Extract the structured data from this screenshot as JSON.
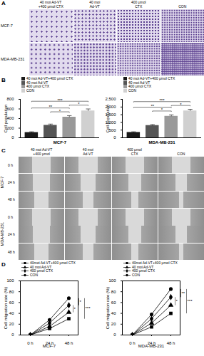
{
  "panel_letters": [
    "A",
    "B",
    "C",
    "D"
  ],
  "image_panels": [
    {
      "column_labels": [
        [
          "40 moi Ad-VT",
          "+400 μmol CTX"
        ],
        [
          "40 moi",
          "Ad-VT"
        ],
        [
          "400 μmol",
          "CTX"
        ],
        [
          "CON"
        ]
      ],
      "rows": [
        "MCF-7",
        "MDA-MB-231"
      ]
    },
    {
      "column_labels": [
        [
          "40 moi Ad-VT",
          "+400 μmol"
        ],
        [
          "40 moi",
          "Ad-VT"
        ],
        [
          "400 μmol",
          "CTX"
        ],
        [
          "CON"
        ]
      ],
      "row_groups": [
        {
          "label": "MCF-7",
          "times": [
            "0 h",
            "24 h",
            "48 h"
          ]
        },
        {
          "label": "MDA-MB-231",
          "times": [
            "0 h",
            "24 h",
            "48 h"
          ]
        }
      ]
    }
  ],
  "chart_data": [
    {
      "type": "bar",
      "title": "MCF-7",
      "ylabel": "Cell population",
      "categories": [
        "40 moi Ad-VT+400 μmol CTX",
        "40 moi Ad-VT",
        "400 μmol CTX",
        "CON"
      ],
      "values": [
        110,
        260,
        430,
        560
      ],
      "errors": [
        15,
        25,
        30,
        40
      ],
      "colors": [
        "#1a1a1a",
        "#555555",
        "#999999",
        "#d0d0d0"
      ],
      "ylim": [
        0,
        800
      ],
      "yticks": [
        0,
        200,
        400,
        600,
        800
      ],
      "tick_labels": "y",
      "legend": "top",
      "annotations": [
        {
          "between": [
            "40 moi Ad-VT",
            "400 μmol CTX"
          ],
          "label": "*"
        },
        {
          "between": [
            "400 μmol CTX",
            "CON"
          ],
          "label": "*"
        },
        {
          "between": [
            "40 moi Ad-VT+400 μmol CTX",
            "400 μmol CTX"
          ],
          "label": "**"
        },
        {
          "between": [
            "40 moi Ad-VT+400 μmol CTX",
            "CON"
          ],
          "label": "***"
        }
      ]
    },
    {
      "type": "bar",
      "title": "MDA-MB-231",
      "ylabel": "Cell population",
      "categories": [
        "40 moi Ad-VT+400 μmol CTX",
        "40 moi Ad-VT",
        "400 μmol CTX",
        "CON"
      ],
      "values": [
        350,
        800,
        1400,
        1750
      ],
      "errors": [
        40,
        60,
        90,
        100
      ],
      "colors": [
        "#1a1a1a",
        "#555555",
        "#999999",
        "#d0d0d0"
      ],
      "ylim": [
        0,
        2500
      ],
      "yticks": [
        0,
        500,
        1000,
        1500,
        2000,
        2500
      ],
      "tick_labels": "y",
      "legend": "top",
      "annotations": [
        {
          "between": [
            "40 moi Ad-VT",
            "400 μmol CTX"
          ],
          "label": "*"
        },
        {
          "between": [
            "400 μmol CTX",
            "CON"
          ],
          "label": "*"
        },
        {
          "between": [
            "40 moi Ad-VT+400 μmol CTX",
            "400 μmol CTX"
          ],
          "label": "**"
        },
        {
          "between": [
            "40 moi Ad-VT+400 μmol CTX",
            "CON"
          ],
          "label": "***"
        }
      ]
    },
    {
      "type": "line",
      "title": "MCF-7",
      "ylabel": "Cell migration rate (%)",
      "categories": [
        "0 h",
        "24 h",
        "48 h"
      ],
      "series": [
        {
          "name": "40moi Ad-VT+400 μmol CTX",
          "color": "#000000",
          "marker": "square",
          "values": [
            0,
            12,
            30
          ]
        },
        {
          "name": "40 moi Ad-VT",
          "color": "#000000",
          "marker": "triangle",
          "values": [
            0,
            16,
            42
          ]
        },
        {
          "name": "400 μmol CTX",
          "color": "#000000",
          "marker": "diamond",
          "values": [
            0,
            22,
            55
          ]
        },
        {
          "name": "CON",
          "color": "#000000",
          "marker": "circle",
          "values": [
            0,
            28,
            68
          ]
        }
      ],
      "ylim": [
        0,
        100
      ],
      "yticks": [
        0,
        20,
        40,
        60,
        80,
        100
      ],
      "legend": "top",
      "annotations": [
        {
          "between": [
            "40 moi Ad-VT",
            "400 μmol CTX"
          ],
          "label": "*"
        },
        {
          "between": [
            "400 μmol CTX",
            "CON"
          ],
          "label": "*"
        },
        {
          "between": [
            "40moi Ad-VT+400 μmol CTX",
            "CON"
          ],
          "label": "***"
        }
      ]
    },
    {
      "type": "line",
      "title": "MDA-MB-231",
      "ylabel": "Cell migration rate (%)",
      "categories": [
        "0 h",
        "24 h",
        "48 h"
      ],
      "series": [
        {
          "name": "40moi Ad-VT+400 μmol CTX",
          "color": "#000000",
          "marker": "square",
          "values": [
            0,
            15,
            40
          ]
        },
        {
          "name": "40 moi Ad-VT",
          "color": "#000000",
          "marker": "triangle",
          "values": [
            0,
            22,
            55
          ]
        },
        {
          "name": "400 μmol CTX",
          "color": "#000000",
          "marker": "diamond",
          "values": [
            0,
            30,
            70
          ]
        },
        {
          "name": "CON",
          "color": "#000000",
          "marker": "circle",
          "values": [
            0,
            38,
            85
          ]
        }
      ],
      "ylim": [
        0,
        100
      ],
      "yticks": [
        0,
        20,
        40,
        60,
        80,
        100
      ],
      "legend": "top",
      "annotations": [
        {
          "between": [
            "40 moi Ad-VT",
            "400 μmol CTX"
          ],
          "label": "*"
        },
        {
          "between": [
            "400 μmol CTX",
            "CON"
          ],
          "label": "**"
        },
        {
          "between": [
            "40moi Ad-VT+400 μmol CTX",
            "CON"
          ],
          "label": "***"
        }
      ]
    }
  ]
}
